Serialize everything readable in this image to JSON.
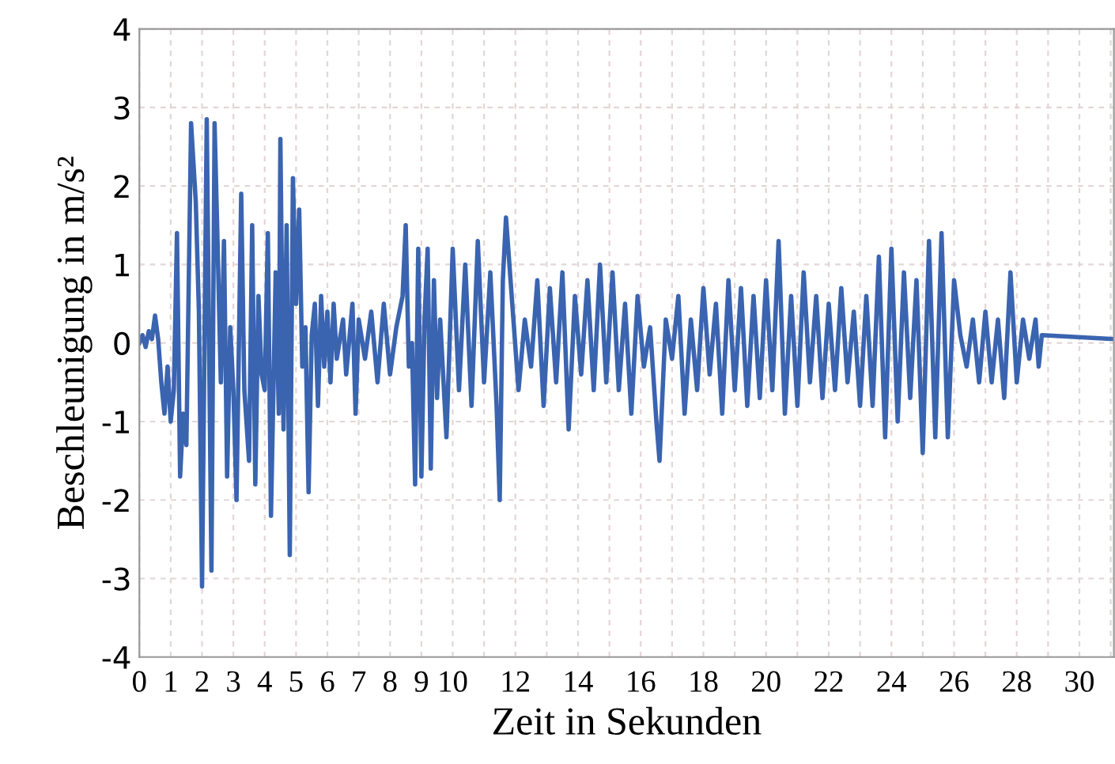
{
  "chart_data": {
    "type": "line",
    "xlabel": "Zeit in Sekunden",
    "ylabel": "Beschleunigung in m/s²",
    "xlim": [
      0,
      31.1
    ],
    "ylim": [
      -4,
      4
    ],
    "yticks": [
      -4,
      -3,
      -2,
      -1,
      0,
      1,
      2,
      3,
      4
    ],
    "xticks": [
      0,
      1,
      2,
      3,
      4,
      5,
      6,
      7,
      8,
      9,
      10,
      {
        "value": 11,
        "label": null
      },
      12,
      {
        "value": 13,
        "label": null
      },
      14,
      {
        "value": 15,
        "label": null
      },
      16,
      {
        "value": 17,
        "label": null
      },
      18,
      {
        "value": 19,
        "label": null
      },
      20,
      {
        "value": 21,
        "label": null
      },
      22,
      {
        "value": 23,
        "label": null
      },
      24,
      {
        "value": 25,
        "label": null
      },
      26,
      {
        "value": 27,
        "label": null
      },
      28,
      {
        "value": 29,
        "label": null
      },
      30,
      {
        "value": 31,
        "label": null
      }
    ],
    "grid": true,
    "marker": "none",
    "line_style": "solid",
    "series": [
      {
        "color": "#3a64b0",
        "x": [
          0,
          0.1,
          0.2,
          0.3,
          0.4,
          0.5,
          0.6,
          0.7,
          0.8,
          0.9,
          1.0,
          1.1,
          1.2,
          1.3,
          1.4,
          1.5,
          1.65,
          1.8,
          1.9,
          2.0,
          2.15,
          2.3,
          2.4,
          2.5,
          2.6,
          2.7,
          2.8,
          2.9,
          3.0,
          3.1,
          3.25,
          3.35,
          3.5,
          3.6,
          3.7,
          3.8,
          3.9,
          4.0,
          4.1,
          4.2,
          4.35,
          4.45,
          4.5,
          4.6,
          4.7,
          4.8,
          4.9,
          5.0,
          5.1,
          5.2,
          5.3,
          5.4,
          5.5,
          5.6,
          5.7,
          5.8,
          5.9,
          6.0,
          6.1,
          6.2,
          6.3,
          6.5,
          6.6,
          6.8,
          6.9,
          7.0,
          7.2,
          7.4,
          7.6,
          7.8,
          8.0,
          8.2,
          8.4,
          8.5,
          8.6,
          8.7,
          8.8,
          8.9,
          9.0,
          9.1,
          9.2,
          9.3,
          9.4,
          9.5,
          9.6,
          9.8,
          10.0,
          10.2,
          10.4,
          10.6,
          10.8,
          11.0,
          11.2,
          11.4,
          11.5,
          11.6,
          11.7,
          11.9,
          12.1,
          12.3,
          12.5,
          12.7,
          12.9,
          13.1,
          13.3,
          13.5,
          13.7,
          13.9,
          14.1,
          14.3,
          14.5,
          14.7,
          14.9,
          15.1,
          15.3,
          15.5,
          15.7,
          15.9,
          16.1,
          16.3,
          16.5,
          16.6,
          16.8,
          17.0,
          17.2,
          17.4,
          17.6,
          17.8,
          18.0,
          18.2,
          18.4,
          18.6,
          18.8,
          19.0,
          19.2,
          19.4,
          19.6,
          19.8,
          20.0,
          20.2,
          20.4,
          20.6,
          20.8,
          21.0,
          21.2,
          21.4,
          21.6,
          21.8,
          22.0,
          22.2,
          22.4,
          22.6,
          22.8,
          23.0,
          23.2,
          23.4,
          23.6,
          23.8,
          24.0,
          24.2,
          24.4,
          24.6,
          24.8,
          25.0,
          25.2,
          25.4,
          25.6,
          25.8,
          26.0,
          26.2,
          26.4,
          26.6,
          26.8,
          27.0,
          27.2,
          27.4,
          27.6,
          27.8,
          28.0,
          28.2,
          28.4,
          28.6,
          28.7,
          28.8,
          31.1
        ],
        "values": [
          0,
          0.1,
          -0.05,
          0.15,
          0.05,
          0.35,
          0.05,
          -0.5,
          -0.9,
          -0.3,
          -1.0,
          -0.6,
          1.4,
          -1.7,
          -0.9,
          -1.3,
          2.8,
          1.8,
          0.4,
          -3.1,
          2.85,
          -2.9,
          2.8,
          1.2,
          -0.5,
          1.3,
          -1.7,
          0.2,
          -0.6,
          -2.0,
          1.9,
          -0.6,
          -1.5,
          1.5,
          -1.8,
          0.6,
          -0.4,
          -0.6,
          1.4,
          -2.2,
          0.9,
          -0.9,
          2.6,
          -1.1,
          1.5,
          -2.7,
          2.1,
          0.5,
          1.7,
          -0.3,
          0.2,
          -1.9,
          0.1,
          0.5,
          -0.8,
          0.6,
          -0.3,
          0.4,
          -0.5,
          0.5,
          -0.2,
          0.3,
          -0.4,
          0.5,
          -0.9,
          0.3,
          -0.2,
          0.4,
          -0.5,
          0.5,
          -0.4,
          0.2,
          0.6,
          1.5,
          -0.3,
          0.0,
          -1.8,
          1.2,
          -1.7,
          0.3,
          1.2,
          -1.6,
          0.8,
          -0.7,
          0.3,
          -1.2,
          1.2,
          -0.6,
          1.0,
          -0.8,
          1.3,
          -0.5,
          0.9,
          -0.8,
          -2.0,
          0.8,
          1.6,
          0.5,
          -0.6,
          0.3,
          -0.3,
          0.8,
          -0.8,
          0.7,
          -0.5,
          0.9,
          -1.1,
          0.6,
          -0.4,
          0.8,
          -0.6,
          1.0,
          -0.5,
          0.9,
          -0.6,
          0.5,
          -0.9,
          0.6,
          -0.3,
          0.2,
          -1.0,
          -1.5,
          0.3,
          -0.2,
          0.6,
          -0.9,
          0.3,
          -0.6,
          0.7,
          -0.4,
          0.5,
          -0.9,
          0.8,
          -0.6,
          0.7,
          -0.8,
          0.6,
          -0.7,
          0.8,
          -0.6,
          1.3,
          -0.9,
          0.6,
          -0.8,
          0.9,
          -0.5,
          0.6,
          -0.7,
          0.5,
          -0.6,
          0.7,
          -0.5,
          0.4,
          -0.8,
          0.6,
          -0.8,
          1.1,
          -1.2,
          1.2,
          -1.0,
          0.9,
          -0.7,
          0.8,
          -1.4,
          1.3,
          -1.2,
          1.4,
          -1.2,
          0.8,
          0.1,
          -0.3,
          0.3,
          -0.5,
          0.4,
          -0.5,
          0.3,
          -0.7,
          0.9,
          -0.5,
          0.3,
          -0.2,
          0.3,
          -0.3,
          0.1,
          0.05
        ]
      }
    ]
  }
}
